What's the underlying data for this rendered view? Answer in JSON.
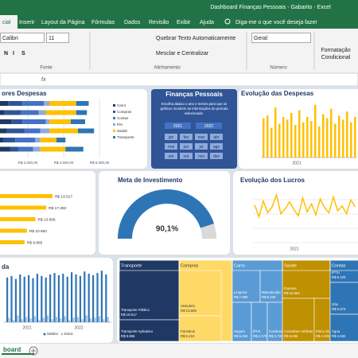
{
  "title_bar": {
    "title": "Dashboard Finanças Pessoais - Gabarito - Excel"
  },
  "menu": {
    "tabs": [
      "cial",
      "Inserir",
      "Layout da Página",
      "Fórmulas",
      "Dados",
      "Revisão",
      "Exibir",
      "Ajuda"
    ],
    "search": "Diga-me o que você deseja fazer"
  },
  "ribbon": {
    "font": "Calibri",
    "size": "11",
    "format_buttons": [
      "N",
      "I",
      "S"
    ],
    "wrap": "Quebrar Texto Automaticamente",
    "merge": "Mesclar e Centralizar",
    "number_format": "Geral",
    "conditional": [
      "Formatação",
      "Condicional"
    ],
    "groups": [
      "Fonte",
      "Alinhamento",
      "Número"
    ]
  },
  "formula_bar": {
    "fx": "fx"
  },
  "expenses_chart": {
    "title": "ores Despesas",
    "xlim": [
      0,
      6000
    ],
    "xticks": [
      {
        "value": 2000,
        "label": "R$ 2.000,00"
      },
      {
        "value": 4000,
        "label": "R$ 4.000,00"
      },
      {
        "value": 6000,
        "label": "R$ 6.000,00"
      }
    ],
    "series": [
      {
        "name": "Carro",
        "color": "#1f3864",
        "values": [
          900,
          700,
          1100,
          800,
          600,
          1000
        ]
      },
      {
        "name": "Compras",
        "color": "#2f5597",
        "values": [
          800,
          900,
          600,
          1000,
          700,
          500
        ]
      },
      {
        "name": "Contas",
        "color": "#4472c4",
        "values": [
          1200,
          1000,
          1300,
          900,
          1100,
          800
        ]
      },
      {
        "name": "Pet",
        "color": "#8faadc",
        "values": [
          300,
          400,
          200,
          500,
          300,
          400
        ]
      },
      {
        "name": "Saúde",
        "color": "#ffc000",
        "values": [
          1500,
          1700,
          1200,
          1600,
          900,
          1400
        ]
      },
      {
        "name": "Transporte",
        "color": "#2e75b6",
        "values": [
          700,
          600,
          800,
          900,
          500,
          1000
        ]
      }
    ]
  },
  "filter_panel": {
    "title": "Finanças Pessoais",
    "description": [
      "Escolha abaixo o ano e meses para que os",
      "gráficos mostrem as informações do período",
      "selecionado."
    ],
    "years": [
      "2021",
      "2022"
    ],
    "months": [
      "jan",
      "fev",
      "mar",
      "abr",
      "mai",
      "jun",
      "jul",
      "ago",
      "set",
      "out",
      "nov",
      "dez"
    ]
  },
  "expense_evolution": {
    "title": "Evolução das Despesas",
    "x_label": "2021",
    "color": "#ffc000",
    "ylim": [
      0,
      4000
    ],
    "values": [
      2900,
      3100,
      2200,
      3700,
      2500,
      3000,
      2800,
      3300,
      2400,
      3500,
      2600,
      3000,
      2700,
      3900,
      2300,
      3200,
      2900,
      3600,
      2500,
      3100,
      2800,
      3400,
      2600,
      3000
    ]
  },
  "top_expenses": {
    "color": "#ffc000",
    "xlim": [
      0,
      22000
    ],
    "values": [
      19517,
      17360,
      13606,
      10692,
      9865
    ],
    "value_labels": [
      "R$ 19.517",
      "R$ 17.360",
      "R$ 13.606",
      "R$ 10.692",
      "R$ 9.865"
    ]
  },
  "gauge": {
    "title": "Meta de Investimento",
    "values": [
      90.1
    ],
    "value_labels": [
      "90,1%"
    ],
    "ylim": [
      0,
      100
    ],
    "color": "#2e75b6"
  },
  "profit_evolution": {
    "title": "Evolução dos Lucros",
    "x_label": "2021",
    "color": "#ffc000",
    "ylim": [
      0,
      6000
    ],
    "values": [
      3800,
      2600,
      4200,
      3000,
      3600,
      4800,
      2900,
      3400,
      4100,
      3300,
      2700,
      4500,
      3100,
      3900,
      2800,
      4400,
      3500,
      3000,
      4600,
      3200,
      3700,
      2900,
      4300,
      3600
    ]
  },
  "income_chart": {
    "title": "da",
    "x_labels": [
      "2021",
      "2022"
    ],
    "ylim": [
      0,
      8000
    ],
    "series": [
      {
        "name": "Salário",
        "color": "#2e75b6",
        "values": [
          6000,
          6200,
          5800,
          6400,
          6100,
          6300,
          5900,
          6500,
          6200,
          6000,
          6400,
          6600,
          6300,
          6500,
          6100,
          6700,
          6400,
          6200,
          6800,
          6500,
          6300,
          6600,
          6900,
          6400
        ]
      },
      {
        "name": "Extra",
        "color": "#9dc3e6",
        "values": [
          600,
          300,
          900,
          400,
          700,
          500,
          800,
          300,
          600,
          900,
          400,
          700,
          500,
          800,
          300,
          600,
          700,
          400,
          900,
          500,
          600,
          800,
          400,
          700
        ]
      }
    ]
  },
  "treemap": {
    "groups": [
      "Transporte",
      "Compras",
      "Carro",
      "Saúde",
      "Contas"
    ],
    "tiles": [
      {
        "label": "Transporte Público",
        "value": "R$ 19.517"
      },
      {
        "label": "Transporte Aplicativo",
        "value": "R$ 9.865"
      },
      {
        "label": "Vestuário",
        "value": "R$ 13.606"
      },
      {
        "label": "Farmácia",
        "value": "R$ 5.210"
      },
      {
        "label": "Limpeza",
        "value": "R$ 7.880"
      },
      {
        "label": "Manutenção",
        "value": "R$ 6.230"
      },
      {
        "label": "Seguro",
        "value": "R$ 5.154"
      },
      {
        "label": "IPVA",
        "value": "R$ 4.170"
      },
      {
        "label": "Combustível",
        "value": "R$ 3.720"
      },
      {
        "label": "Exames",
        "value": "R$ 10.692"
      },
      {
        "label": "Consultas médicas",
        "value": "R$ 9.065"
      },
      {
        "label": "Plano de saúde",
        "value": "R$ 4.820"
      },
      {
        "label": "IPTU",
        "value": "R$ 6.120"
      },
      {
        "label": "Gás",
        "value": "R$ 5.673"
      },
      {
        "label": "Água",
        "value": "R$ 4.532"
      }
    ]
  },
  "sheet_tabs": {
    "active": "board"
  }
}
